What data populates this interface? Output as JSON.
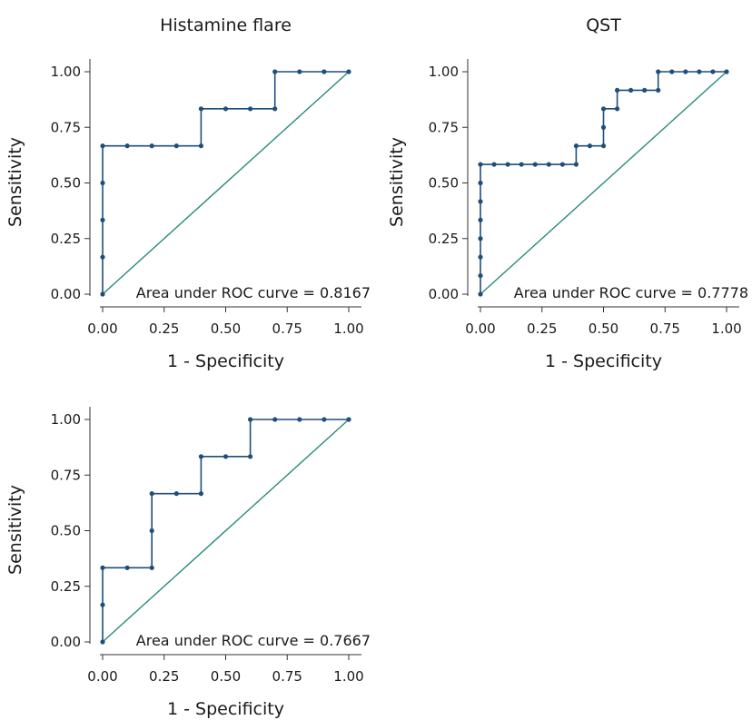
{
  "colors": {
    "roc": "#1f4e79",
    "ref": "#2a8a7e",
    "axis": "#333333",
    "text": "#1a1a1a"
  },
  "chart_data": [
    {
      "type": "line",
      "title": "Histamine flare",
      "xlabel": "1 - Specificity",
      "ylabel": "Sensitivity",
      "xlim": [
        0,
        1
      ],
      "ylim": [
        0,
        1
      ],
      "xticks": [
        "0.00",
        "0.25",
        "0.50",
        "0.75",
        "1.00"
      ],
      "yticks": [
        "0.00",
        "0.25",
        "0.50",
        "0.75",
        "1.00"
      ],
      "annotation": "Area under ROC curve = 0.8167",
      "grid": false,
      "series": [
        {
          "role": "roc",
          "marker": "dot",
          "x": [
            0,
            0,
            0,
            0,
            0,
            0.1,
            0.2,
            0.3,
            0.4,
            0.4,
            0.5,
            0.6,
            0.7,
            0.7,
            0.8,
            0.9,
            1
          ],
          "y": [
            0,
            0.1667,
            0.3333,
            0.5,
            0.6667,
            0.6667,
            0.6667,
            0.6667,
            0.6667,
            0.8333,
            0.8333,
            0.8333,
            0.8333,
            1,
            1,
            1,
            1
          ]
        },
        {
          "role": "reference",
          "marker": "none",
          "x": [
            0,
            1
          ],
          "y": [
            0,
            1
          ]
        }
      ]
    },
    {
      "type": "line",
      "title": "QST",
      "xlabel": "1 - Specificity",
      "ylabel": "Sensitivity",
      "xlim": [
        0,
        1
      ],
      "ylim": [
        0,
        1
      ],
      "xticks": [
        "0.00",
        "0.25",
        "0.50",
        "0.75",
        "1.00"
      ],
      "yticks": [
        "0.00",
        "0.25",
        "0.50",
        "0.75",
        "1.00"
      ],
      "annotation": "Area under ROC curve = 0.7778",
      "grid": false,
      "series": [
        {
          "role": "roc",
          "marker": "dot",
          "x": [
            0,
            0,
            0,
            0,
            0,
            0,
            0,
            0,
            0.0556,
            0.1111,
            0.1667,
            0.2222,
            0.2778,
            0.3333,
            0.3889,
            0.3889,
            0.4444,
            0.5,
            0.5,
            0.5,
            0.5556,
            0.5556,
            0.6111,
            0.6667,
            0.7222,
            0.7222,
            0.7778,
            0.8333,
            0.8889,
            0.9444,
            1
          ],
          "y": [
            0,
            0.0833,
            0.1667,
            0.25,
            0.3333,
            0.4167,
            0.5,
            0.5833,
            0.5833,
            0.5833,
            0.5833,
            0.5833,
            0.5833,
            0.5833,
            0.5833,
            0.6667,
            0.6667,
            0.6667,
            0.75,
            0.8333,
            0.8333,
            0.9167,
            0.9167,
            0.9167,
            0.9167,
            1,
            1,
            1,
            1,
            1,
            1
          ]
        },
        {
          "role": "reference",
          "marker": "none",
          "x": [
            0,
            1
          ],
          "y": [
            0,
            1
          ]
        }
      ]
    },
    {
      "type": "line",
      "title": "",
      "xlabel": "1 - Specificity",
      "ylabel": "Sensitivity",
      "xlim": [
        0,
        1
      ],
      "ylim": [
        0,
        1
      ],
      "xticks": [
        "0.00",
        "0.25",
        "0.50",
        "0.75",
        "1.00"
      ],
      "yticks": [
        "0.00",
        "0.25",
        "0.50",
        "0.75",
        "1.00"
      ],
      "annotation": "Area under ROC curve = 0.7667",
      "grid": false,
      "series": [
        {
          "role": "roc",
          "marker": "dot",
          "x": [
            0,
            0,
            0,
            0.1,
            0.2,
            0.2,
            0.2,
            0.3,
            0.4,
            0.4,
            0.5,
            0.6,
            0.6,
            0.7,
            0.8,
            0.9,
            1
          ],
          "y": [
            0,
            0.1667,
            0.3333,
            0.3333,
            0.3333,
            0.5,
            0.6667,
            0.6667,
            0.6667,
            0.8333,
            0.8333,
            0.8333,
            1,
            1,
            1,
            1,
            1
          ]
        },
        {
          "role": "reference",
          "marker": "none",
          "x": [
            0,
            1
          ],
          "y": [
            0,
            1
          ]
        }
      ]
    }
  ]
}
